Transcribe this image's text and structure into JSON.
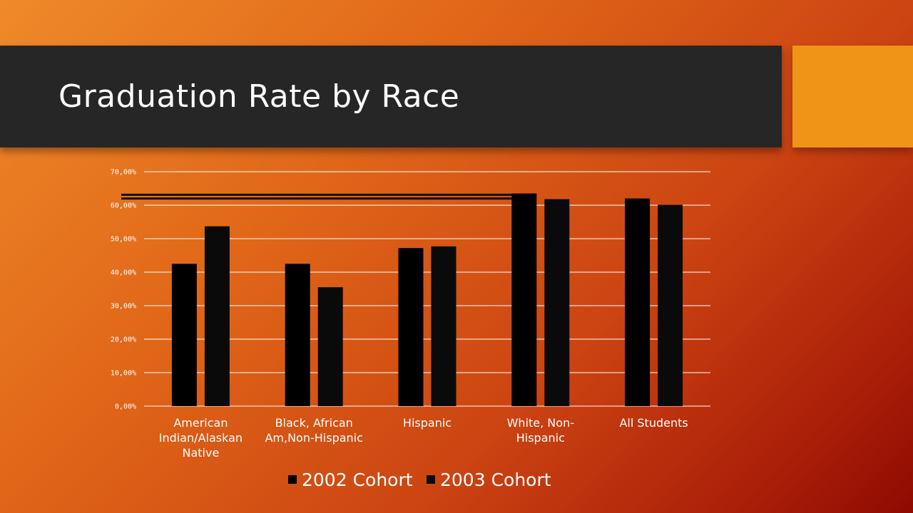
{
  "slide": {
    "title": "Graduation Rate by Race"
  },
  "colors": {
    "title_bar": "#262626",
    "accent_box": "#f09418",
    "gridline": "#ffffff",
    "series_2002": "#000000",
    "series_2003": "#0a0a0a",
    "tick_text": "#ffffff"
  },
  "chart_data": {
    "type": "bar",
    "title": "",
    "xlabel": "",
    "ylabel": "",
    "categories": [
      "American Indian/Alaskan Native",
      "Black, African Am,Non-Hispanic",
      "Hispanic",
      "White, Non-Hispanic",
      "All Students"
    ],
    "category_lines": [
      [
        "American",
        "Indian/Alaskan",
        "Native"
      ],
      [
        "Black, African",
        "Am,Non-Hispanic"
      ],
      [
        "Hispanic"
      ],
      [
        "White, Non-",
        "Hispanic"
      ],
      [
        "All Students"
      ]
    ],
    "series": [
      {
        "name": "2002 Cohort",
        "values": [
          42.5,
          42.5,
          47.2,
          63.5,
          62.0
        ]
      },
      {
        "name": "2003 Cohort",
        "values": [
          53.7,
          35.5,
          47.7,
          61.8,
          60.1
        ]
      }
    ],
    "ylim": [
      0,
      70
    ],
    "yticks": [
      0,
      10,
      20,
      30,
      40,
      50,
      60,
      70
    ],
    "ytick_labels": [
      "0,00%",
      "10,00%",
      "20,00%",
      "30,00%",
      "40,00%",
      "50,00%",
      "60,00%",
      "70,00%"
    ],
    "reference_lines": [
      63.1,
      62.0
    ],
    "grid": true,
    "legend_position": "bottom"
  }
}
